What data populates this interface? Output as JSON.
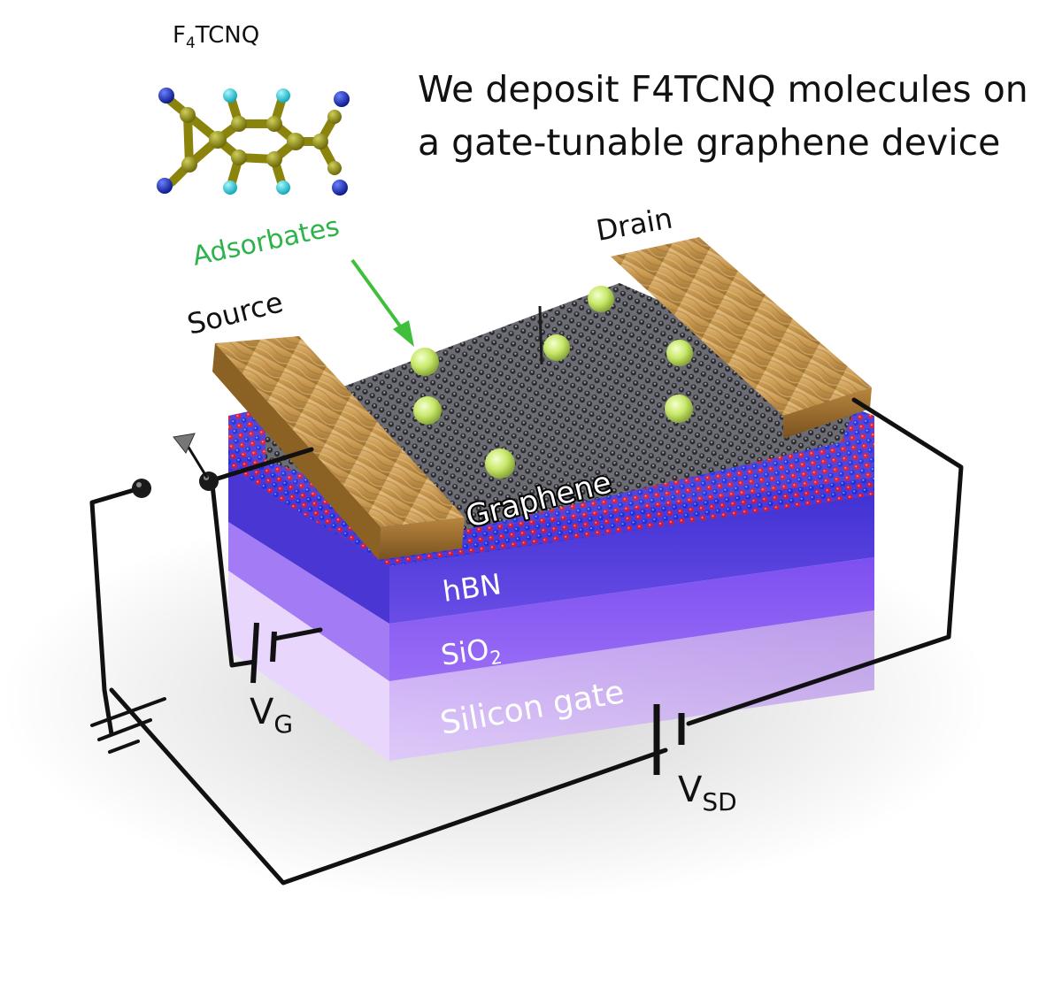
{
  "headline": {
    "line1": "We deposit F4TCNQ molecules on",
    "line2": "a gate-tunable graphene device"
  },
  "molecule": {
    "name_prefix": "F",
    "name_sub": "4",
    "name_suffix": "TCNQ"
  },
  "labels": {
    "adsorbates": "Adsorbates",
    "source": "Source",
    "drain": "Drain",
    "graphene": "Graphene",
    "hbn": "hBN",
    "sio2_main": "SiO",
    "sio2_sub": "2",
    "silicon_gate": "Silicon gate",
    "vg_main": "V",
    "vg_sub": "G",
    "vsd_main": "V",
    "vsd_sub": "SD"
  },
  "colors": {
    "adsorbate_label": "#2db34a",
    "gold_contact": "#c9a05a",
    "graphene_atom": "#3a3a3a",
    "hbn_boron": "#1c2fd6",
    "hbn_nitrogen": "#e0162a",
    "hbn_layer": "#5a3fd6",
    "sio2_layer": "#8d5ef2",
    "silicon_layer": "#d6b8ff",
    "adsorbate_ball": "#c8e86a",
    "molecule_carbon": "#9a9410",
    "molecule_nitrogen": "#1a2fb0",
    "molecule_fluorine": "#22c9d6",
    "wire": "#111111"
  },
  "icons": [
    "battery-symbol-icon",
    "ground-symbol-icon",
    "arrow-up-icon"
  ]
}
